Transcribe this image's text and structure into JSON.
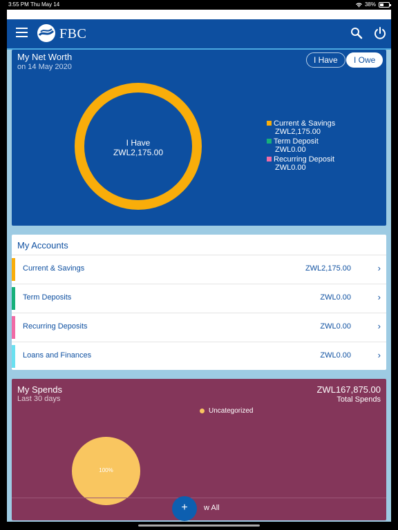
{
  "status_bar": {
    "time": "3:55 PM",
    "date": "Thu May 14",
    "battery": "38%"
  },
  "header": {
    "brand": "FBC",
    "menu_icon": "hamburger-icon",
    "search_icon": "search-icon",
    "power_icon": "power-icon"
  },
  "net_worth": {
    "title": "My Net Worth",
    "date": "on 14 May 2020",
    "toggle_have": "I Have",
    "toggle_owe": "I Owe",
    "center_label": "I Have",
    "center_value": "ZWL2,175.00",
    "ring_color": "#f9ad0a",
    "legend": [
      {
        "label": "Current & Savings",
        "value": "ZWL2,175.00",
        "color": "#f9ad0a"
      },
      {
        "label": "Term Deposit",
        "value": "ZWL0.00",
        "color": "#17b07a"
      },
      {
        "label": "Recurring Deposit",
        "value": "ZWL0.00",
        "color": "#f06ba5"
      }
    ]
  },
  "accounts": {
    "title": "My Accounts",
    "items": [
      {
        "name": "Current & Savings",
        "amount": "ZWL2,175.00",
        "color": "#f9ad0a"
      },
      {
        "name": "Term Deposits",
        "amount": "ZWL0.00",
        "color": "#17b07a"
      },
      {
        "name": "Recurring Deposits",
        "amount": "ZWL0.00",
        "color": "#f06ba5"
      },
      {
        "name": "Loans and Finances",
        "amount": "ZWL0.00",
        "color": "#6be0f0"
      }
    ]
  },
  "spends": {
    "title": "My Spends",
    "period": "Last 30 days",
    "total": "ZWL167,875.00",
    "total_label": "Total Spends",
    "legend_label": "Uncategorized",
    "pie_label": "100%",
    "pie_color": "#f9c660",
    "view_all": "w All",
    "fab_label": "+"
  }
}
